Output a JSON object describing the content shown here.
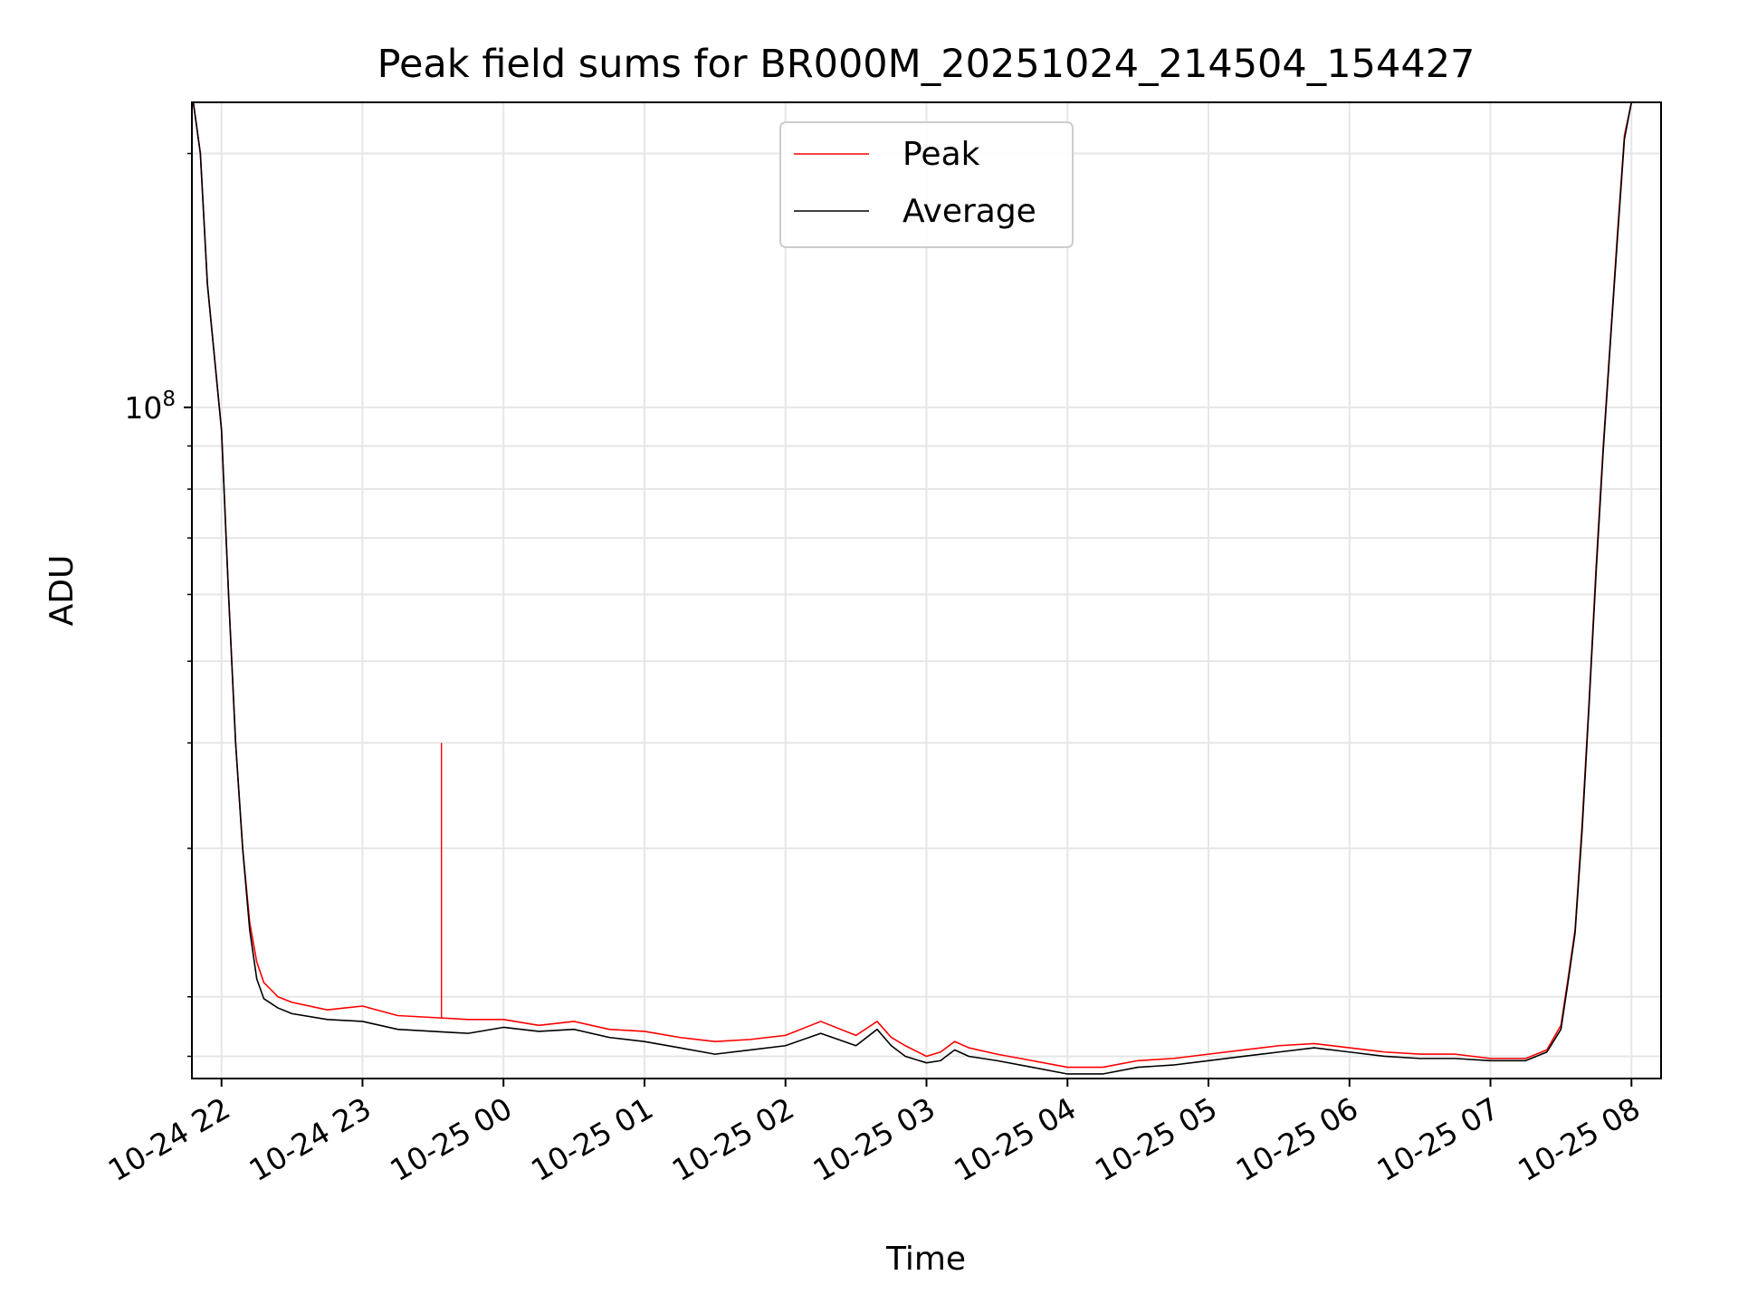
{
  "chart_data": {
    "type": "line",
    "title": "Peak field sums for BR000M_20251024_214504_154427",
    "xlabel": "Time",
    "ylabel": "ADU",
    "yscale": "log",
    "ylim": [
      16000000,
      230000000
    ],
    "xlim_hours": [
      -0.21,
      10.21
    ],
    "grid": true,
    "legend_position": "upper center",
    "x_tick_labels": [
      "10-24 22",
      "10-24 23",
      "10-25 00",
      "10-25 01",
      "10-25 02",
      "10-25 03",
      "10-25 04",
      "10-25 05",
      "10-25 06",
      "10-25 07",
      "10-25 08"
    ],
    "x_tick_hours": [
      0,
      1,
      2,
      3,
      4,
      5,
      6,
      7,
      8,
      9,
      10
    ],
    "y_major_ticks": [
      {
        "value": 100000000,
        "label_base": "10",
        "label_exp": "8"
      }
    ],
    "y_minor_ticks": [
      17000000,
      20000000,
      30000000,
      40000000,
      50000000,
      60000000,
      70000000,
      80000000,
      90000000,
      200000000
    ],
    "x_hours": [
      -0.2,
      -0.15,
      -0.1,
      0.0,
      0.05,
      0.1,
      0.15,
      0.2,
      0.25,
      0.3,
      0.4,
      0.5,
      0.75,
      1.0,
      1.25,
      1.5,
      1.75,
      2.0,
      2.25,
      2.5,
      2.75,
      3.0,
      3.25,
      3.5,
      3.75,
      4.0,
      4.25,
      4.5,
      4.65,
      4.75,
      4.85,
      5.0,
      5.1,
      5.2,
      5.3,
      5.5,
      5.75,
      6.0,
      6.25,
      6.5,
      6.75,
      7.0,
      7.25,
      7.5,
      7.75,
      8.0,
      8.25,
      8.5,
      8.75,
      9.0,
      9.25,
      9.4,
      9.5,
      9.55,
      9.6,
      9.65,
      9.7,
      9.75,
      9.8,
      9.85,
      9.9,
      9.95,
      10.0
    ],
    "series": [
      {
        "name": "Peak",
        "color": "#ff0000",
        "values": [
          230000000,
          200000000,
          140000000,
          94000000,
          60000000,
          40000000,
          30000000,
          24500000,
          22000000,
          20800000,
          20000000,
          19700000,
          19300000,
          19500000,
          19000000,
          18900000,
          18800000,
          18800000,
          18500000,
          18700000,
          18300000,
          18200000,
          17900000,
          17700000,
          17800000,
          18000000,
          18700000,
          18000000,
          18700000,
          17900000,
          17500000,
          17000000,
          17200000,
          17700000,
          17400000,
          17100000,
          16800000,
          16500000,
          16500000,
          16800000,
          16900000,
          17100000,
          17300000,
          17500000,
          17600000,
          17400000,
          17200000,
          17100000,
          17100000,
          16900000,
          16900000,
          17300000,
          18500000,
          21000000,
          24000000,
          32000000,
          45000000,
          65000000,
          90000000,
          120000000,
          160000000,
          210000000,
          230000000
        ],
        "spikes": [
          {
            "hour": 1.56,
            "value": 40000000
          }
        ]
      },
      {
        "name": "Average",
        "color": "#000000",
        "values": [
          230000000,
          200000000,
          140000000,
          94000000,
          60000000,
          40000000,
          30000000,
          24000000,
          21000000,
          19900000,
          19400000,
          19100000,
          18800000,
          18700000,
          18300000,
          18200000,
          18100000,
          18400000,
          18200000,
          18300000,
          17900000,
          17700000,
          17400000,
          17100000,
          17300000,
          17500000,
          18100000,
          17500000,
          18300000,
          17500000,
          17000000,
          16700000,
          16800000,
          17300000,
          17000000,
          16800000,
          16500000,
          16200000,
          16200000,
          16500000,
          16600000,
          16800000,
          17000000,
          17200000,
          17400000,
          17200000,
          17000000,
          16900000,
          16900000,
          16800000,
          16800000,
          17200000,
          18300000,
          20800000,
          23800000,
          31500000,
          44500000,
          64000000,
          89000000,
          119000000,
          158000000,
          208000000,
          230000000
        ]
      }
    ]
  }
}
